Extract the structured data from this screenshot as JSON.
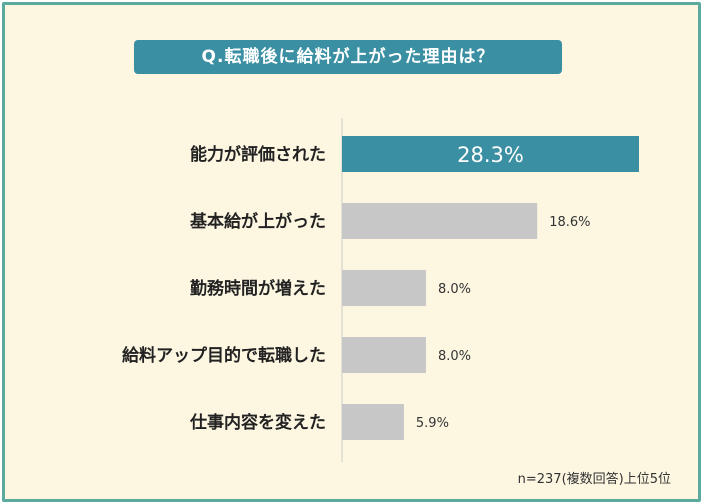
{
  "title": "Q.転職後に給料が上がった理由は？",
  "footnote": "n=237(複数回答)上位5位",
  "colors": {
    "highlight_bar": "#3a8fa3",
    "bar": "#c7c7c7",
    "background": "#fdf7e2",
    "frame": "#5aab9d"
  },
  "chart_data": {
    "type": "bar",
    "orientation": "horizontal",
    "categories": [
      "能力が評価された",
      "基本給が上がった",
      "勤務時間が増えた",
      "給料アップ目的で転職した",
      "仕事内容を変えた"
    ],
    "values": [
      28.3,
      18.6,
      8.0,
      8.0,
      5.9
    ],
    "value_labels": [
      "28.3%",
      "18.6%",
      "8.0%",
      "8.0%",
      "5.9%"
    ],
    "highlight_index": 0,
    "xlim": [
      0,
      28.3
    ]
  }
}
